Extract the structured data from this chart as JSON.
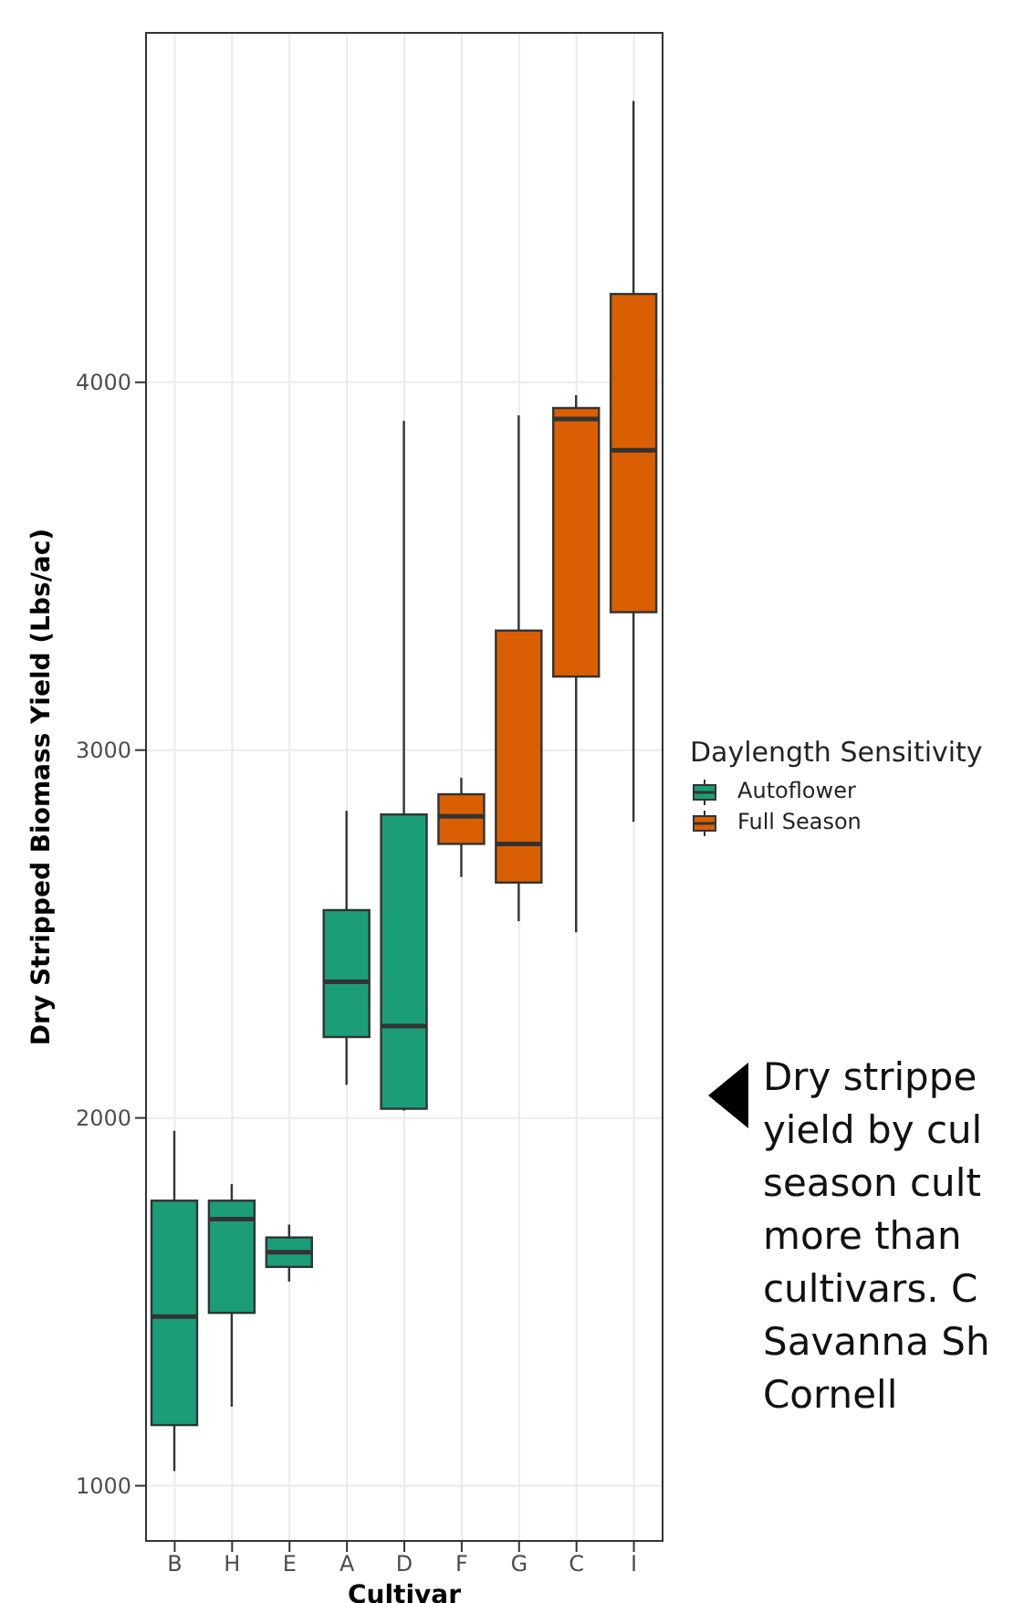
{
  "chart_data": {
    "type": "box",
    "xlabel": "Cultivar",
    "ylabel": "Dry Stripped Biomass Yield (Lbs/ac)",
    "legend_title": "Daylength Sensitivity",
    "legend": "right",
    "grid": true,
    "categories": [
      "B",
      "H",
      "E",
      "A",
      "D",
      "F",
      "G",
      "C",
      "I"
    ],
    "ylim": [
      850,
      4950
    ],
    "yticks": [
      1000,
      2000,
      3000,
      4000
    ],
    "series": [
      {
        "name": "Autoflower",
        "color": "#1b9e77",
        "boxes": [
          {
            "low": 1040,
            "q1": 1165,
            "median": 1460,
            "q3": 1775,
            "high": 1965
          },
          {
            "low": 1215,
            "q1": 1470,
            "median": 1725,
            "q3": 1775,
            "high": 1820
          },
          {
            "low": 1555,
            "q1": 1595,
            "median": 1635,
            "q3": 1675,
            "high": 1710
          },
          {
            "low": 2090,
            "q1": 2220,
            "median": 2370,
            "q3": 2565,
            "high": 2835
          },
          {
            "low": 2020,
            "q1": 2025,
            "median": 2250,
            "q3": 2825,
            "high": 3895
          },
          null,
          null,
          null,
          null
        ]
      },
      {
        "name": "Full Season",
        "color": "#d95f02",
        "boxes": [
          null,
          null,
          null,
          null,
          null,
          {
            "low": 2655,
            "q1": 2745,
            "median": 2820,
            "q3": 2880,
            "high": 2925
          },
          {
            "low": 2535,
            "q1": 2640,
            "median": 2745,
            "q3": 3325,
            "high": 3910
          },
          {
            "low": 2505,
            "q1": 3200,
            "median": 3900,
            "q3": 3930,
            "high": 3965
          },
          {
            "low": 2805,
            "q1": 3375,
            "median": 3815,
            "q3": 4240,
            "high": 4765
          }
        ]
      }
    ],
    "annotations": [
      "Dry strippe\nyield by cul\nseason cult\nmore than\ncultivars. C\nSavanna Sh\nCornell"
    ]
  }
}
